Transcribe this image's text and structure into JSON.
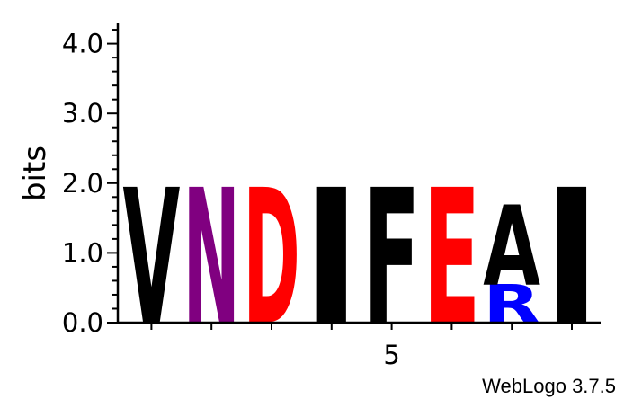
{
  "footer": "WebLogo 3.7.5",
  "chart_data": {
    "type": "sequence-logo",
    "ylabel": "bits",
    "ylim": [
      0,
      4.32
    ],
    "y_major_ticks": [
      0.0,
      1.0,
      2.0,
      3.0,
      4.0
    ],
    "y_tick_labels": [
      "0.0",
      "1.0",
      "2.0",
      "3.0",
      "4.0"
    ],
    "y_minor_step": 0.2,
    "positions": [
      1,
      2,
      3,
      4,
      5,
      6,
      7,
      8
    ],
    "x_tick_labels": [
      {
        "position": 5,
        "label": "5"
      }
    ],
    "columns": [
      {
        "position": 1,
        "letters": [
          {
            "letter": "V",
            "height": 1.95,
            "color": "#000000"
          }
        ]
      },
      {
        "position": 2,
        "letters": [
          {
            "letter": "N",
            "height": 1.95,
            "color": "#800080"
          }
        ]
      },
      {
        "position": 3,
        "letters": [
          {
            "letter": "D",
            "height": 1.95,
            "color": "#ff0000"
          }
        ]
      },
      {
        "position": 4,
        "letters": [
          {
            "letter": "I",
            "height": 1.95,
            "color": "#000000"
          }
        ]
      },
      {
        "position": 5,
        "letters": [
          {
            "letter": "F",
            "height": 1.95,
            "color": "#000000"
          }
        ]
      },
      {
        "position": 6,
        "letters": [
          {
            "letter": "E",
            "height": 1.95,
            "color": "#ff0000"
          }
        ]
      },
      {
        "position": 7,
        "letters": [
          {
            "letter": "R",
            "height": 0.55,
            "color": "#0000ff"
          },
          {
            "letter": "A",
            "height": 1.15,
            "color": "#000000"
          }
        ]
      },
      {
        "position": 8,
        "letters": [
          {
            "letter": "I",
            "height": 1.95,
            "color": "#000000"
          }
        ]
      }
    ]
  }
}
